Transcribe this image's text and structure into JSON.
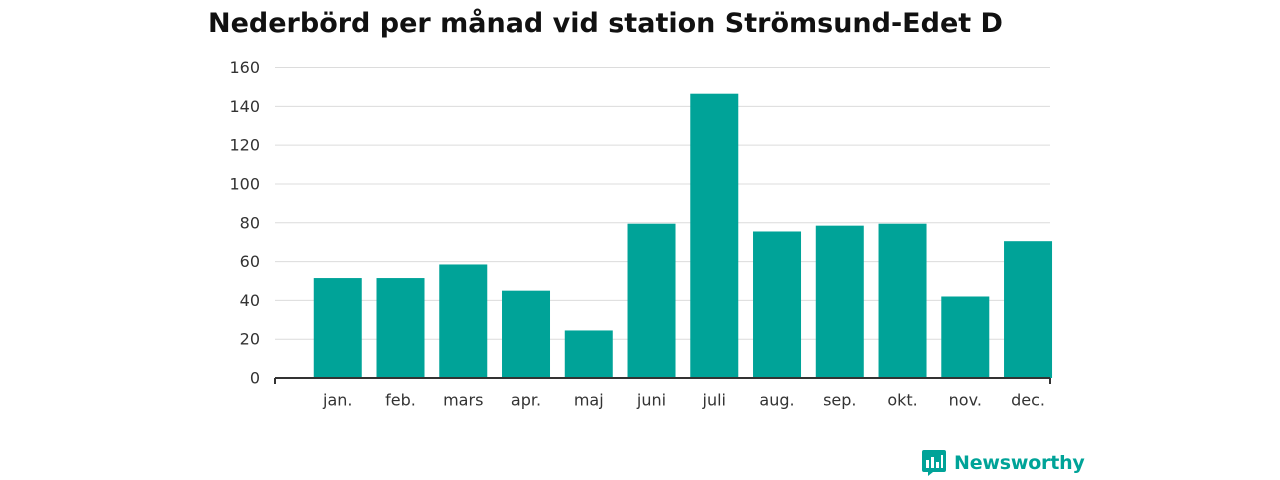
{
  "chart_data": {
    "type": "bar",
    "title": "Nederbörd per månad vid station Strömsund-Edet D",
    "categories": [
      "jan.",
      "feb.",
      "mars",
      "apr.",
      "maj",
      "juni",
      "juli",
      "aug.",
      "sep.",
      "okt.",
      "nov.",
      "dec."
    ],
    "values": [
      51.5,
      51.5,
      58.5,
      45,
      24.5,
      79.5,
      146.5,
      75.5,
      78.5,
      79.5,
      42,
      70.5
    ],
    "ylim": [
      0,
      160
    ],
    "yticks": [
      0,
      20,
      40,
      60,
      80,
      100,
      120,
      140,
      160
    ],
    "grid": true,
    "xlabel": "",
    "ylabel": "",
    "bar_color": "#00a398"
  },
  "brand": {
    "name": "Newsworthy",
    "color": "#00a398",
    "icon": "bar-chart-speech-bubble-icon"
  }
}
